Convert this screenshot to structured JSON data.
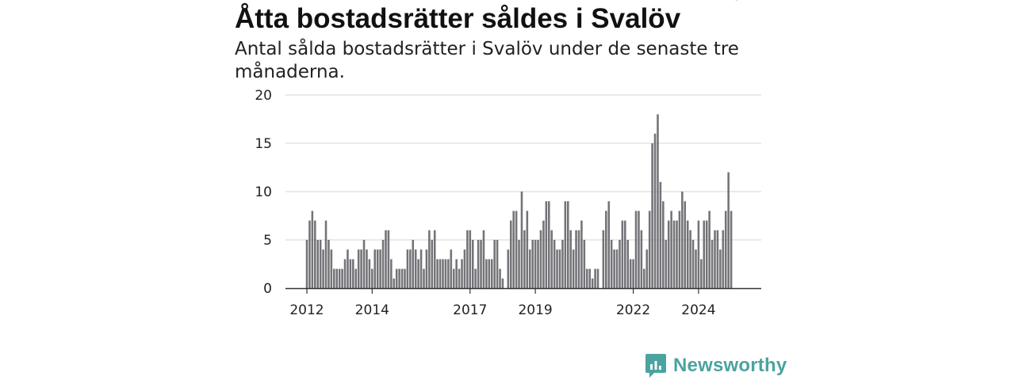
{
  "header": {
    "title": "Åtta bostadsrätter såldes i Svalöv",
    "subtitle": "Antal sålda bostadsrätter i Svalöv under de senaste tre månaderna."
  },
  "brand": {
    "name": "Newsworthy",
    "icon": "newsworthy-logo-icon",
    "color": "#4ba3a0"
  },
  "colors": {
    "bar": "#737378",
    "highlight": "#26a69a",
    "grid": "#dddddd",
    "axis": "#333333"
  },
  "chart_data": {
    "type": "bar",
    "title": "Åtta bostadsrätter såldes i Svalöv",
    "subtitle": "Antal sålda bostadsrätter i Svalöv under de senaste tre månaderna.",
    "xlabel": "",
    "ylabel": "",
    "ylim": [
      0,
      20
    ],
    "yticks": [
      "0",
      "5",
      "10",
      "15",
      "20"
    ],
    "xticks": [
      {
        "label": "2012",
        "index": 0
      },
      {
        "label": "2014",
        "index": 24
      },
      {
        "label": "2017",
        "index": 60
      },
      {
        "label": "2019",
        "index": 84
      },
      {
        "label": "2022",
        "index": 120
      },
      {
        "label": "2024",
        "index": 144
      }
    ],
    "start": "2012-01",
    "frequency": "monthly",
    "values": [
      5,
      7,
      8,
      7,
      5,
      5,
      4,
      7,
      5,
      4,
      2,
      2,
      2,
      2,
      3,
      4,
      3,
      3,
      2,
      4,
      4,
      5,
      4,
      3,
      2,
      4,
      4,
      4,
      5,
      6,
      6,
      3,
      1,
      2,
      2,
      2,
      2,
      4,
      4,
      5,
      4,
      3,
      4,
      2,
      4,
      6,
      5,
      6,
      3,
      3,
      3,
      3,
      3,
      4,
      2,
      3,
      2,
      3,
      4,
      6,
      6,
      5,
      2,
      5,
      5,
      6,
      3,
      3,
      3,
      5,
      5,
      2,
      1,
      0,
      4,
      7,
      8,
      8,
      5,
      10,
      6,
      8,
      4,
      5,
      5,
      5,
      6,
      7,
      9,
      9,
      6,
      5,
      4,
      4,
      5,
      9,
      9,
      6,
      4,
      6,
      6,
      7,
      5,
      2,
      2,
      1,
      2,
      2,
      0,
      6,
      8,
      9,
      5,
      4,
      4,
      5,
      7,
      7,
      5,
      3,
      3,
      8,
      8,
      6,
      2,
      4,
      8,
      15,
      16,
      18,
      11,
      9,
      5,
      7,
      8,
      7,
      7,
      8,
      10,
      9,
      7,
      6,
      5,
      4,
      7,
      3,
      7,
      7,
      8,
      5,
      6,
      6,
      4,
      6,
      8,
      12,
      8
    ],
    "highlight_index": 158,
    "highlight_label": "8",
    "grid": true,
    "legend": "none"
  }
}
